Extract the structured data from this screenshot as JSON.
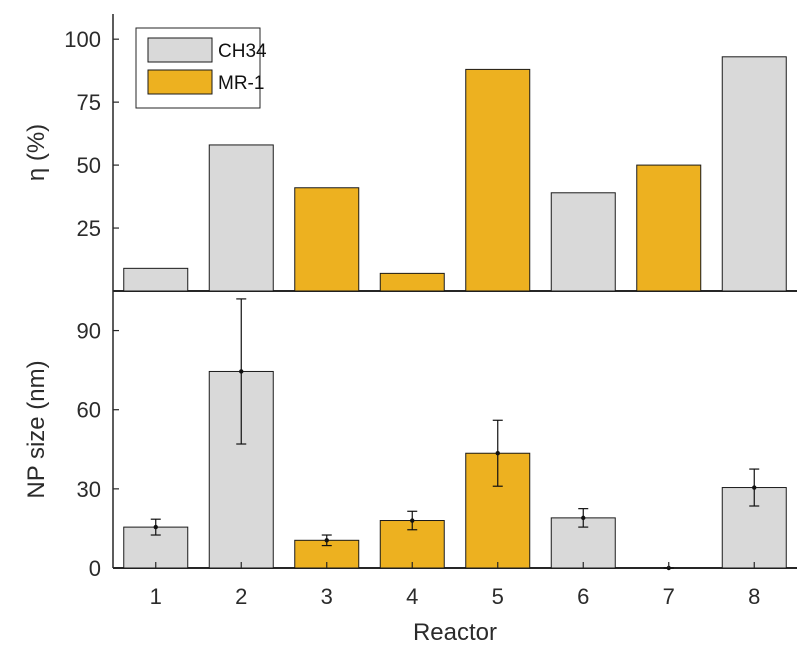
{
  "chart_data": [
    {
      "type": "bar",
      "ylabel": "η (%)",
      "ylim": [
        0,
        110
      ],
      "yticks": [
        25,
        50,
        75,
        100
      ],
      "categories": [
        "1",
        "2",
        "3",
        "4",
        "5",
        "6",
        "7",
        "8"
      ],
      "values": [
        9,
        58,
        41,
        7,
        88,
        39,
        50,
        93
      ],
      "bar_strain": [
        "CH34",
        "CH34",
        "MR-1",
        "MR-1",
        "MR-1",
        "CH34",
        "MR-1",
        "CH34"
      ],
      "legend": {
        "position": "top-left",
        "entries": [
          {
            "name": "CH34",
            "color": "#d9d9d9"
          },
          {
            "name": "MR-1",
            "color": "#edb120"
          }
        ]
      }
    },
    {
      "type": "bar",
      "ylabel": "NP size (nm)",
      "xlabel": "Reactor",
      "ylim": [
        0,
        105
      ],
      "yticks": [
        0,
        30,
        60,
        90
      ],
      "categories": [
        "1",
        "2",
        "3",
        "4",
        "5",
        "6",
        "7",
        "8"
      ],
      "values": [
        15.5,
        74.5,
        10.5,
        18,
        43.5,
        19,
        0,
        30.5
      ],
      "error": [
        3,
        27.5,
        2,
        3.5,
        12.5,
        3.5,
        0,
        7
      ],
      "bar_strain": [
        "CH34",
        "CH34",
        "MR-1",
        "MR-1",
        "MR-1",
        "CH34",
        "MR-1",
        "CH34"
      ]
    }
  ],
  "colors": {
    "CH34": "#d9d9d9",
    "MR-1": "#edb120",
    "edge": "#1a1a1a",
    "axis": "#262626"
  }
}
